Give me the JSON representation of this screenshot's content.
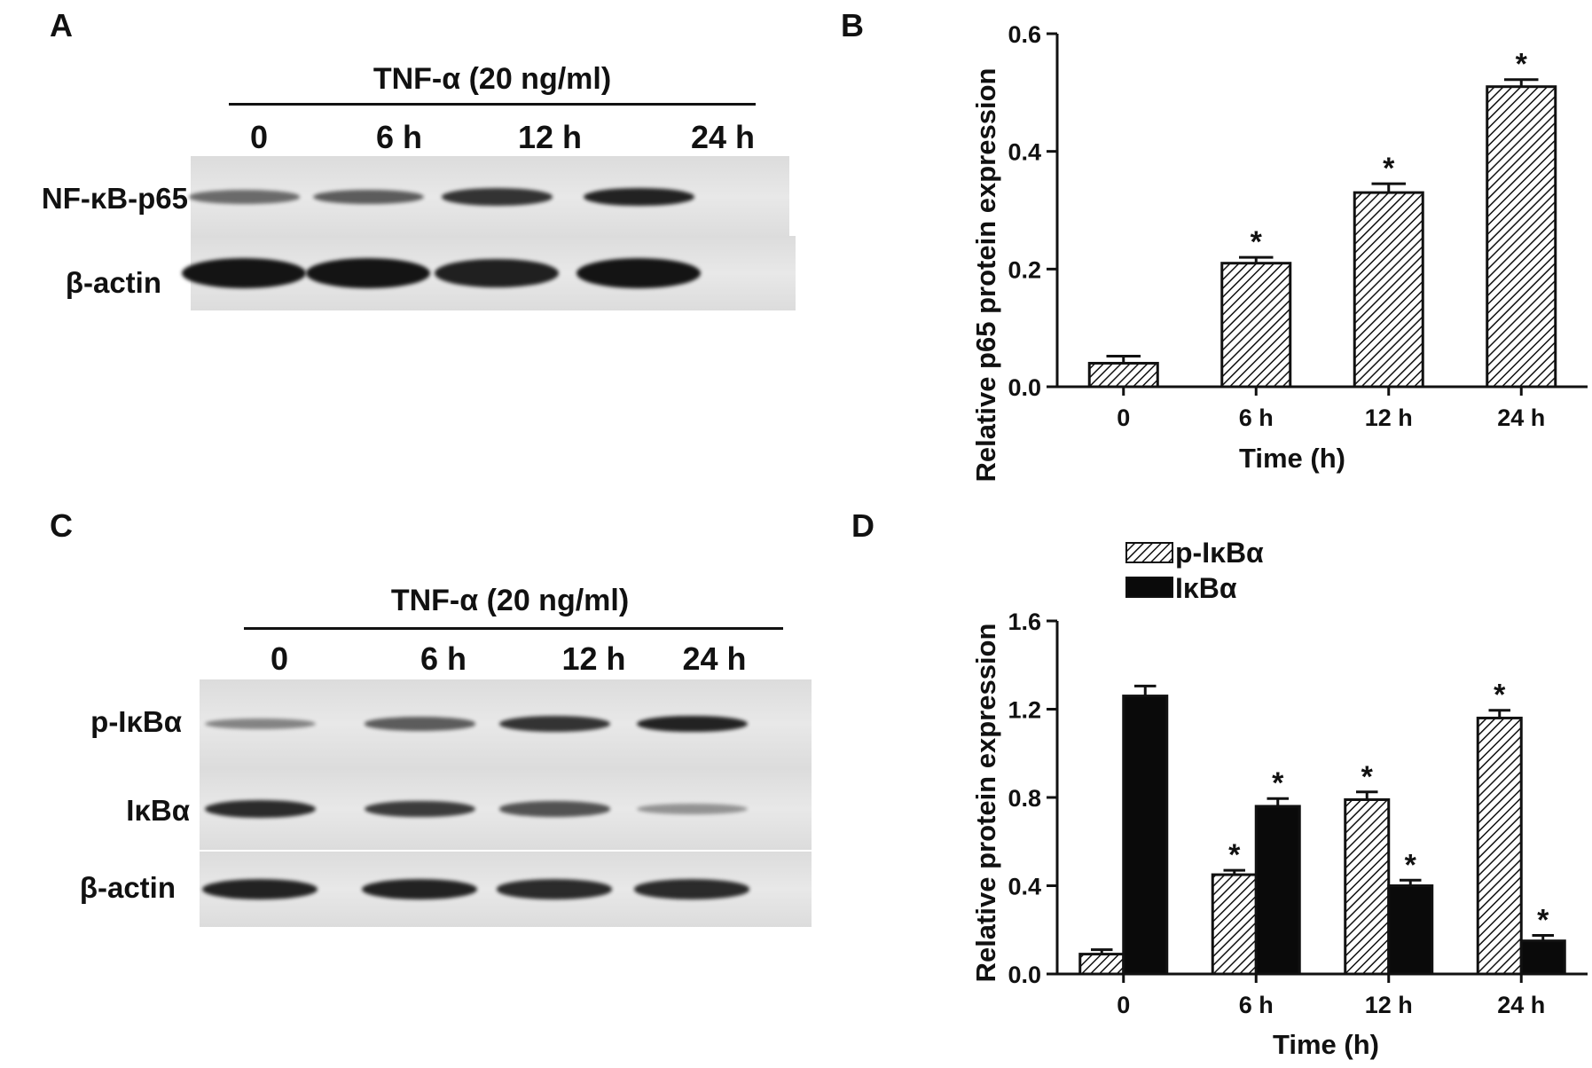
{
  "panels": {
    "A": {
      "letter": "A",
      "treatment": "TNF-α (20 ng/ml)",
      "lanes": [
        "0",
        "6 h",
        "12 h",
        "24 h"
      ],
      "rows": [
        {
          "label": "NF-κB-p65",
          "band_intensity": [
            0.45,
            0.55,
            0.8,
            0.9
          ]
        },
        {
          "label": "β-actin",
          "band_intensity": [
            1.0,
            1.0,
            0.92,
            1.0
          ]
        }
      ]
    },
    "B": {
      "letter": "B"
    },
    "C": {
      "letter": "C",
      "treatment": "TNF-α (20 ng/ml)",
      "lanes": [
        "0",
        "6 h",
        "12 h",
        "24 h"
      ],
      "rows": [
        {
          "label": "p-IκBα",
          "band_intensity": [
            0.3,
            0.55,
            0.8,
            0.9
          ]
        },
        {
          "label": "IκBα",
          "band_intensity": [
            0.85,
            0.75,
            0.6,
            0.2
          ]
        },
        {
          "label": "β-actin",
          "band_intensity": [
            0.9,
            0.9,
            0.85,
            0.85
          ]
        }
      ]
    },
    "D": {
      "letter": "D"
    }
  },
  "colors": {
    "bar_fill_solid": "#0a0a0a",
    "hatch": "#111111",
    "axis": "#111111",
    "blot_bg": "#dcdcdc",
    "band": "#141414"
  },
  "chart_data": [
    {
      "panel": "B",
      "type": "bar",
      "categories": [
        "0",
        "6 h",
        "12 h",
        "24 h"
      ],
      "series": [
        {
          "pattern": "hatched",
          "values": [
            0.04,
            0.21,
            0.33,
            0.51
          ],
          "errors": [
            0.012,
            0.01,
            0.015,
            0.012
          ],
          "markers": [
            "",
            "*",
            "*",
            "*"
          ]
        }
      ],
      "xlabel": "Time (h)",
      "ylabel": "Relative p65 protein expression",
      "ylim": [
        0,
        0.6
      ],
      "yticks": [
        "0.0",
        "0.2",
        "0.4",
        "0.6"
      ],
      "grid": false
    },
    {
      "panel": "D",
      "type": "bar",
      "categories": [
        "0",
        "6 h",
        "12 h",
        "24 h"
      ],
      "series": [
        {
          "name": "p-IκBα",
          "pattern": "hatched",
          "values": [
            0.09,
            0.45,
            0.79,
            1.16
          ],
          "errors": [
            0.02,
            0.02,
            0.035,
            0.035
          ],
          "markers": [
            "",
            "*",
            "*",
            "*"
          ]
        },
        {
          "name": "IκBα",
          "pattern": "solid",
          "values": [
            1.26,
            0.76,
            0.4,
            0.15
          ],
          "errors": [
            0.045,
            0.035,
            0.025,
            0.025
          ],
          "markers": [
            "",
            "*",
            "*",
            "*"
          ]
        }
      ],
      "xlabel": "Time (h)",
      "ylabel": "Relative protein expression",
      "ylim": [
        0,
        1.6
      ],
      "yticks": [
        "0.0",
        "0.4",
        "0.8",
        "1.2",
        "1.6"
      ],
      "legend": "top-left",
      "grid": false
    }
  ]
}
